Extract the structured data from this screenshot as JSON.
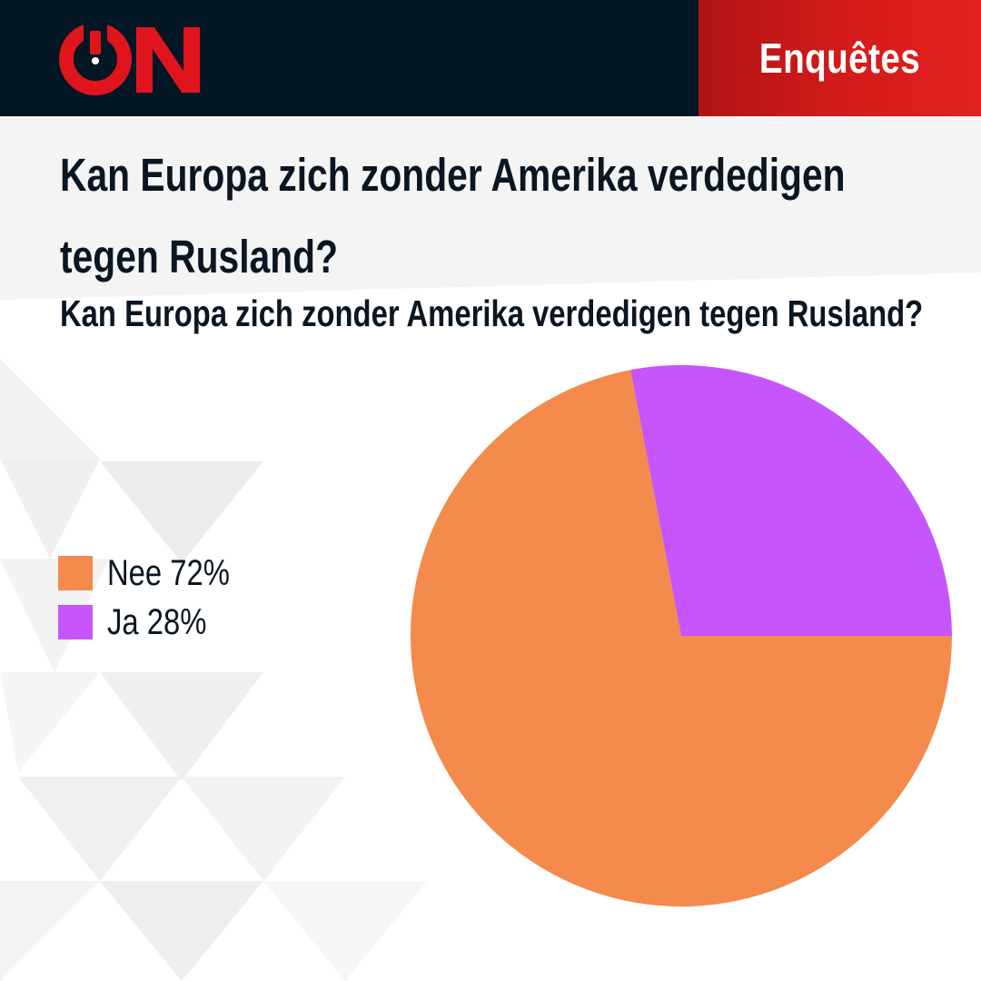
{
  "header": {
    "logo_text": "ON",
    "badge_label": "Enquêtes"
  },
  "colors": {
    "header_bg": "#021624",
    "badge_red": "#d61b1b",
    "logo_red": "#e0141c",
    "nee": "#f48a4c",
    "ja": "#c655fb",
    "text": "#0a1622"
  },
  "title": "Kan Europa zich zonder Amerika verdedigen tegen Rusland?",
  "subtitle": "Kan Europa zich zonder Amerika verdedigen tegen Rusland?",
  "chart_data": {
    "type": "pie",
    "title": "Kan Europa zich zonder Amerika verdedigen tegen Rusland?",
    "slices": [
      {
        "label": "Nee",
        "value": 72,
        "legend": "Nee 72%",
        "color": "#f48a4c"
      },
      {
        "label": "Ja",
        "value": 28,
        "legend": "Ja 28%",
        "color": "#c655fb"
      }
    ],
    "legend_position": "left"
  }
}
